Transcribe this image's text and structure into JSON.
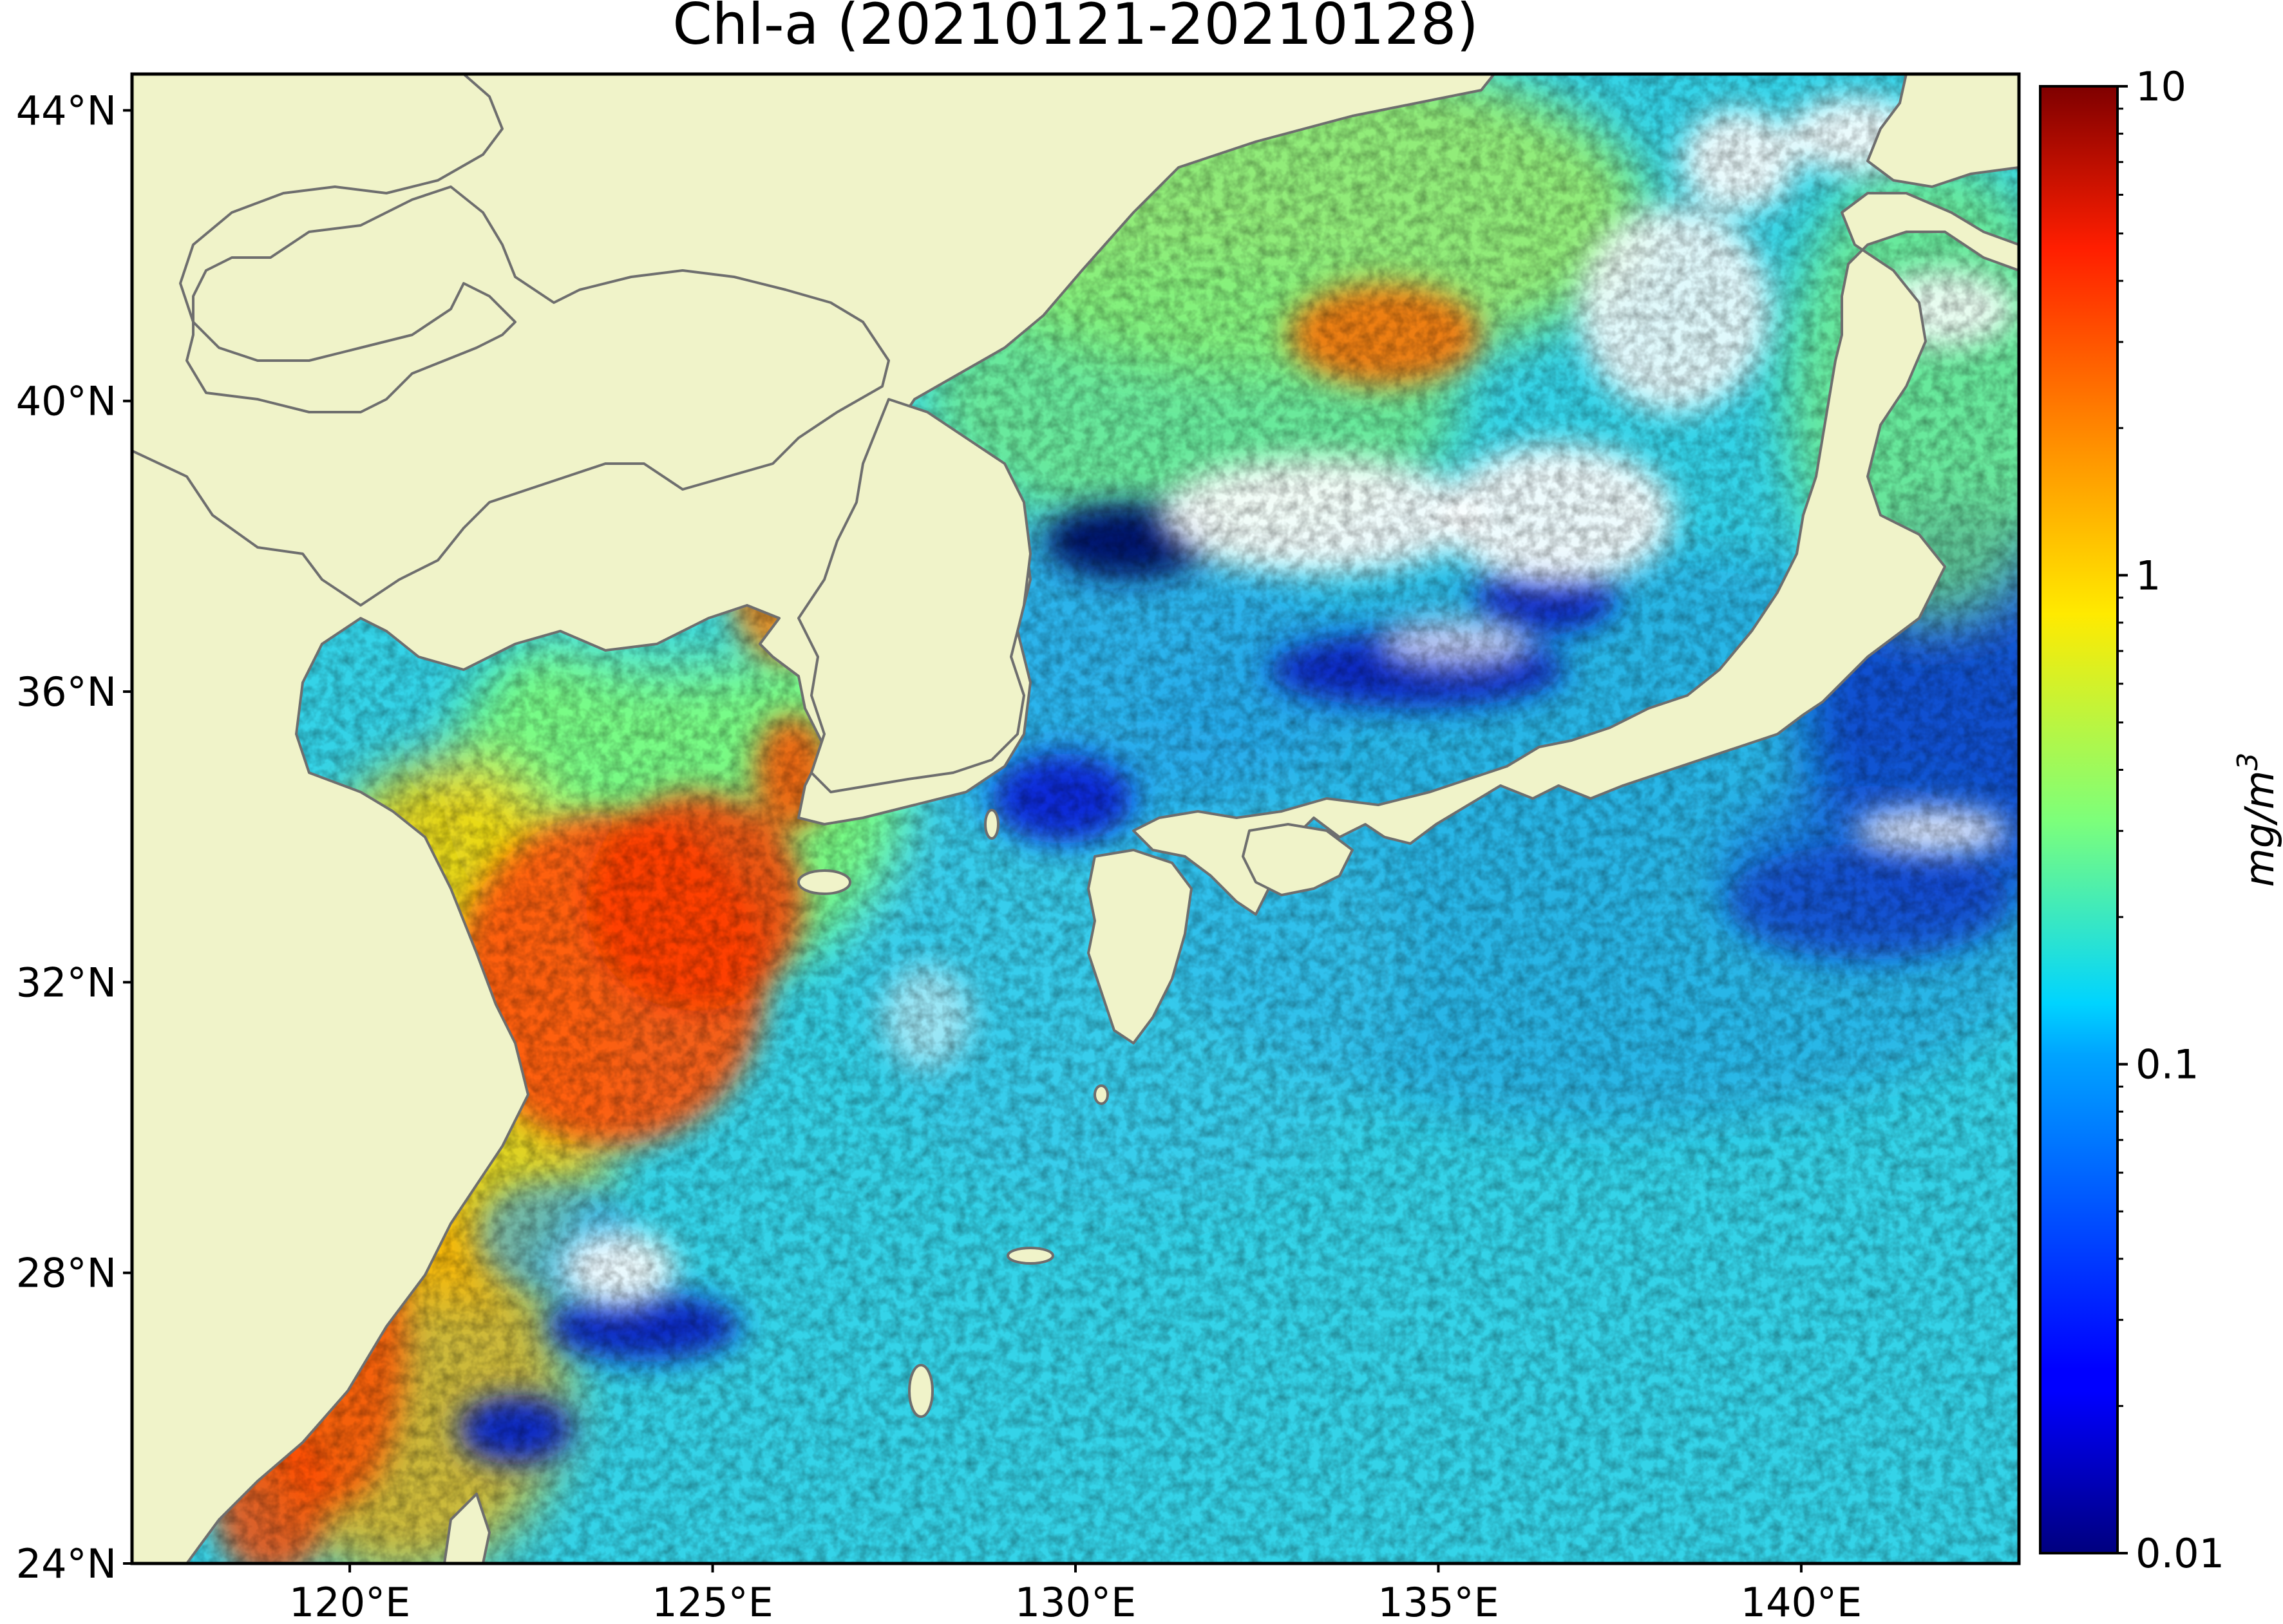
{
  "title": "Chl-a (20210121-20210128)",
  "map": {
    "projection": "PlateCarree",
    "lon_range": [
      117,
      143
    ],
    "lat_range": [
      24,
      44.5
    ],
    "lat_ticks": [
      {
        "value": 44,
        "label": "44°N"
      },
      {
        "value": 40,
        "label": "40°N"
      },
      {
        "value": 36,
        "label": "36°N"
      },
      {
        "value": 32,
        "label": "32°N"
      },
      {
        "value": 28,
        "label": "28°N"
      },
      {
        "value": 24,
        "label": "24°N"
      }
    ],
    "lon_ticks": [
      {
        "value": 120,
        "label": "120°E"
      },
      {
        "value": 125,
        "label": "125°E"
      },
      {
        "value": 130,
        "label": "130°E"
      },
      {
        "value": 135,
        "label": "135°E"
      },
      {
        "value": 140,
        "label": "140°E"
      }
    ],
    "land_color": "#f0f3c9",
    "coastline_color": "#6e6e6e",
    "nodata_color": "#ffffff"
  },
  "colorbar": {
    "label_text": "mg/m",
    "label_superscript": "3",
    "scale": "log",
    "colormap": "jet",
    "range": [
      0.01,
      10
    ],
    "major_ticks": [
      {
        "value": 10,
        "label": "10"
      },
      {
        "value": 1,
        "label": "1"
      },
      {
        "value": 0.1,
        "label": "0.1"
      },
      {
        "value": 0.01,
        "label": "0.01"
      }
    ]
  }
}
